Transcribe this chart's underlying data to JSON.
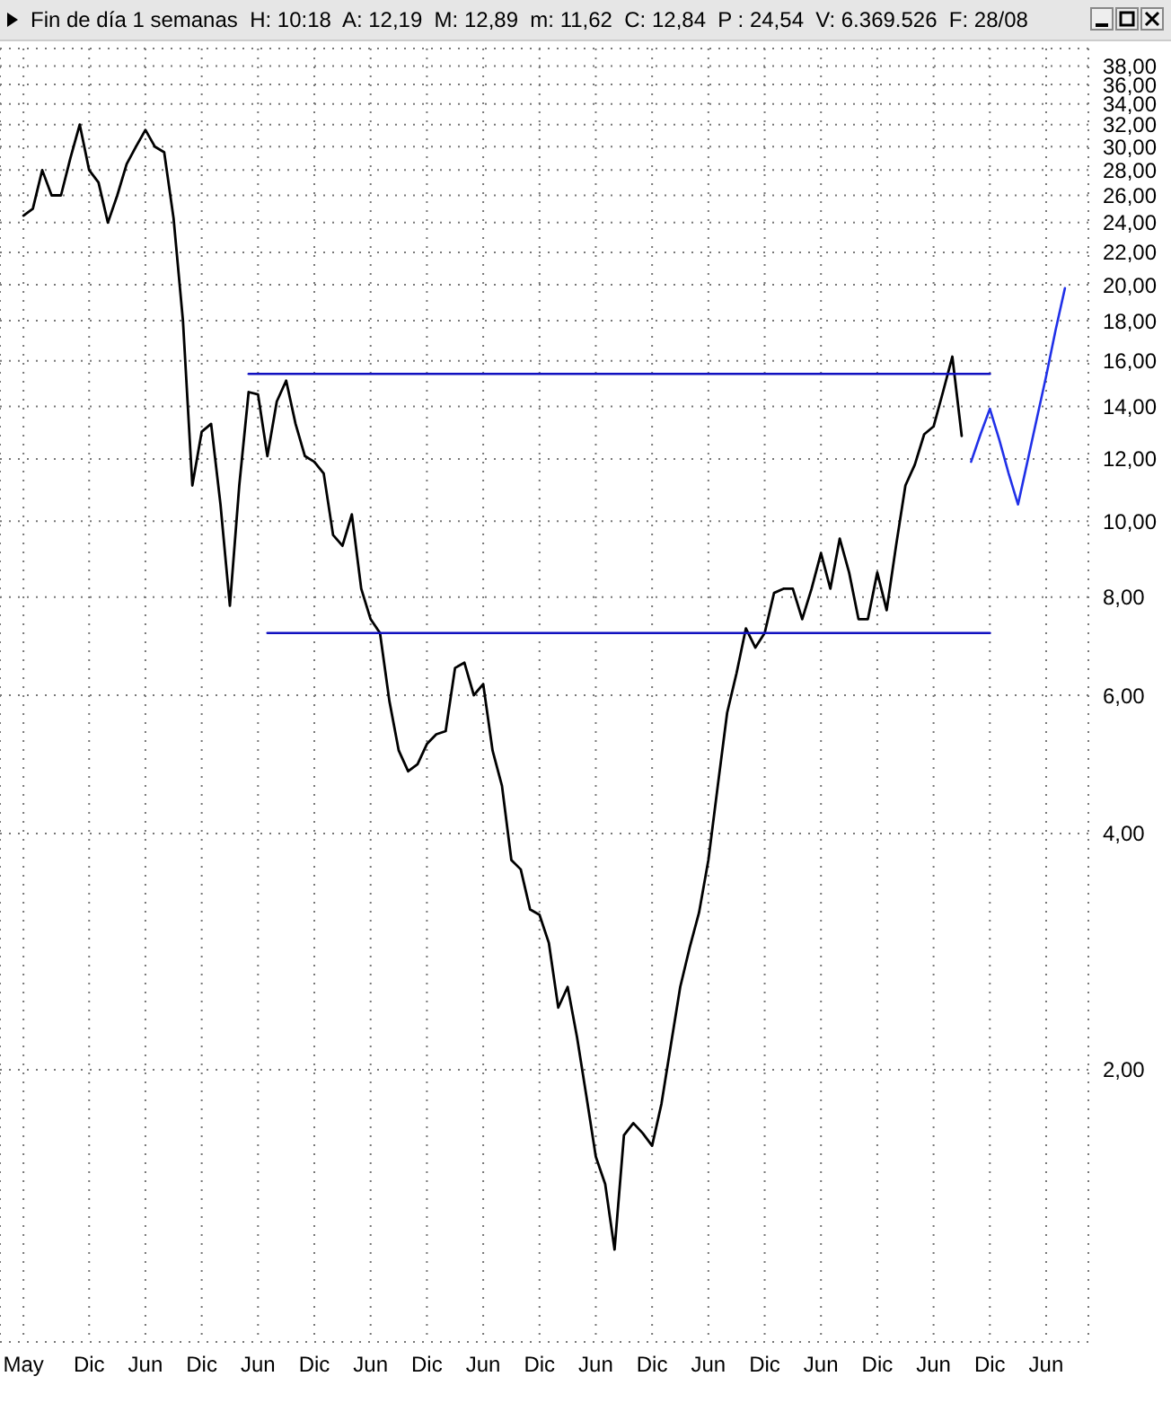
{
  "chart_data": {
    "type": "line",
    "title": "Fin de día 1 semanas  H: 10:18  A: 12,19  M: 12,89  m: 11,62  C: 12,84  P : 24,54  V: 6.369.526  F: 28/08",
    "log": "y",
    "grid": true,
    "legend": false,
    "marker": "none",
    "line_style": "solid",
    "categories": [
      "May",
      null,
      null,
      null,
      null,
      null,
      null,
      "Dic",
      null,
      null,
      null,
      null,
      null,
      "Jun",
      null,
      null,
      null,
      null,
      null,
      "Dic",
      null,
      null,
      null,
      null,
      null,
      "Jun",
      null,
      null,
      null,
      null,
      null,
      "Dic",
      null,
      null,
      null,
      null,
      null,
      "Jun",
      null,
      null,
      null,
      null,
      null,
      "Dic",
      null,
      null,
      null,
      null,
      null,
      "Jun",
      null,
      null,
      null,
      null,
      null,
      "Dic",
      null,
      null,
      null,
      null,
      null,
      "Jun",
      null,
      null,
      null,
      null,
      null,
      "Dic",
      null,
      null,
      null,
      null,
      null,
      "Jun",
      null,
      null,
      null,
      null,
      null,
      "Dic",
      null,
      null,
      null,
      null,
      null,
      "Jun",
      null,
      null,
      null,
      null,
      null,
      "Dic",
      null,
      null,
      null,
      null,
      null,
      "Jun",
      null,
      null,
      null,
      null,
      null,
      "Dic",
      null,
      null,
      null,
      null,
      null,
      "Jun",
      null,
      null,
      null,
      null
    ],
    "ylim": [
      0.9,
      40
    ],
    "yticks": [
      {
        "value": 2,
        "label": "2,00"
      },
      {
        "value": 4,
        "label": "4,00"
      },
      {
        "value": 6,
        "label": "6,00"
      },
      {
        "value": 8,
        "label": "8,00"
      },
      {
        "value": 10,
        "label": "10,00"
      },
      {
        "value": 12,
        "label": "12,00"
      },
      {
        "value": 14,
        "label": "14,00"
      },
      {
        "value": 16,
        "label": "16,00"
      },
      {
        "value": 18,
        "label": "18,00"
      },
      {
        "value": 20,
        "label": "20,00"
      },
      {
        "value": 22,
        "label": "22,00"
      },
      {
        "value": 24,
        "label": "24,00"
      },
      {
        "value": 26,
        "label": "26,00"
      },
      {
        "value": 28,
        "label": "28,00"
      },
      {
        "value": 30,
        "label": "30,00"
      },
      {
        "value": 32,
        "label": "32,00"
      },
      {
        "value": 34,
        "label": "34,00"
      },
      {
        "value": 36,
        "label": "36,00"
      },
      {
        "value": 38,
        "label": "38,00"
      }
    ],
    "series": [
      {
        "color": "#000000",
        "values": [
          24.5,
          25,
          28,
          26,
          26,
          29,
          32,
          28,
          27,
          24,
          26,
          28.5,
          30,
          31.5,
          30,
          29.5,
          24.3,
          18,
          11.1,
          13,
          13.3,
          10.5,
          7.8,
          11.1,
          14.6,
          14.5,
          12.1,
          14.2,
          15.1,
          13.3,
          12.1,
          11.9,
          11.5,
          9.6,
          9.3,
          10.2,
          8.2,
          7.5,
          7.2,
          5.9,
          5.1,
          4.8,
          4.9,
          5.2,
          5.35,
          5.4,
          6.5,
          6.6,
          6,
          6.2,
          5.1,
          4.6,
          3.7,
          3.6,
          3.2,
          3.15,
          2.9,
          2.4,
          2.55,
          2.2,
          1.85,
          1.55,
          1.43,
          1.18,
          1.65,
          1.71,
          1.66,
          1.6,
          1.81,
          2.15,
          2.55,
          2.86,
          3.17,
          3.7,
          4.6,
          5.7,
          6.4,
          7.3,
          6.9,
          7.2,
          8.1,
          8.2,
          8.2,
          7.5,
          8.2,
          9.1,
          8.2,
          9.5,
          8.6,
          7.5,
          7.5,
          8.6,
          7.7,
          9.3,
          11.1,
          11.8,
          12.9,
          13.2,
          14.6,
          16.2,
          12.84,
          null,
          null,
          null,
          null,
          null,
          null,
          null,
          null,
          null,
          null,
          null,
          null,
          null
        ]
      },
      {
        "color": "#1010c0",
        "values": [
          null,
          null,
          null,
          null,
          null,
          null,
          null,
          null,
          null,
          null,
          null,
          null,
          null,
          null,
          null,
          null,
          null,
          null,
          null,
          null,
          null,
          null,
          null,
          null,
          15.4,
          15.4,
          15.4,
          15.4,
          15.4,
          15.4,
          15.4,
          15.4,
          15.4,
          15.4,
          15.4,
          15.4,
          15.4,
          15.4,
          15.4,
          15.4,
          15.4,
          15.4,
          15.4,
          15.4,
          15.4,
          15.4,
          15.4,
          15.4,
          15.4,
          15.4,
          15.4,
          15.4,
          15.4,
          15.4,
          15.4,
          15.4,
          15.4,
          15.4,
          15.4,
          15.4,
          15.4,
          15.4,
          15.4,
          15.4,
          15.4,
          15.4,
          15.4,
          15.4,
          15.4,
          15.4,
          15.4,
          15.4,
          15.4,
          15.4,
          15.4,
          15.4,
          15.4,
          15.4,
          15.4,
          15.4,
          15.4,
          15.4,
          15.4,
          15.4,
          15.4,
          15.4,
          15.4,
          15.4,
          15.4,
          15.4,
          15.4,
          15.4,
          15.4,
          15.4,
          15.4,
          15.4,
          15.4,
          15.4,
          15.4,
          15.4,
          15.4,
          15.4,
          15.4,
          15.4,
          null,
          null,
          null,
          null,
          null,
          null,
          null,
          null,
          null,
          null
        ]
      },
      {
        "color": "#1010c0",
        "values": [
          null,
          null,
          null,
          null,
          null,
          null,
          null,
          null,
          null,
          null,
          null,
          null,
          null,
          null,
          null,
          null,
          null,
          null,
          null,
          null,
          null,
          null,
          null,
          null,
          null,
          null,
          7.2,
          7.2,
          7.2,
          7.2,
          7.2,
          7.2,
          7.2,
          7.2,
          7.2,
          7.2,
          7.2,
          7.2,
          7.2,
          7.2,
          7.2,
          7.2,
          7.2,
          7.2,
          7.2,
          7.2,
          7.2,
          7.2,
          7.2,
          7.2,
          7.2,
          7.2,
          7.2,
          7.2,
          7.2,
          7.2,
          7.2,
          7.2,
          7.2,
          7.2,
          7.2,
          7.2,
          7.2,
          7.2,
          7.2,
          7.2,
          7.2,
          7.2,
          7.2,
          7.2,
          7.2,
          7.2,
          7.2,
          7.2,
          7.2,
          7.2,
          7.2,
          7.2,
          7.2,
          7.2,
          7.2,
          7.2,
          7.2,
          7.2,
          7.2,
          7.2,
          7.2,
          7.2,
          7.2,
          7.2,
          7.2,
          7.2,
          7.2,
          7.2,
          7.2,
          7.2,
          7.2,
          7.2,
          7.2,
          7.2,
          7.2,
          7.2,
          7.2,
          7.2,
          null,
          null,
          null,
          null,
          null,
          null,
          null,
          null,
          null,
          null
        ]
      },
      {
        "color": "#2030e8",
        "values": [
          null,
          null,
          null,
          null,
          null,
          null,
          null,
          null,
          null,
          null,
          null,
          null,
          null,
          null,
          null,
          null,
          null,
          null,
          null,
          null,
          null,
          null,
          null,
          null,
          null,
          null,
          null,
          null,
          null,
          null,
          null,
          null,
          null,
          null,
          null,
          null,
          null,
          null,
          null,
          null,
          null,
          null,
          null,
          null,
          null,
          null,
          null,
          null,
          null,
          null,
          null,
          null,
          null,
          null,
          null,
          null,
          null,
          null,
          null,
          null,
          null,
          null,
          null,
          null,
          null,
          null,
          null,
          null,
          null,
          null,
          null,
          null,
          null,
          null,
          null,
          null,
          null,
          null,
          null,
          null,
          null,
          null,
          null,
          null,
          null,
          null,
          null,
          null,
          null,
          null,
          null,
          null,
          null,
          null,
          null,
          null,
          null,
          null,
          null,
          null,
          null,
          11.9,
          12.9,
          13.9,
          12.7,
          11.5,
          10.5,
          11.9,
          13.5,
          15.3,
          17.5,
          19.8,
          null,
          null
        ]
      }
    ]
  }
}
